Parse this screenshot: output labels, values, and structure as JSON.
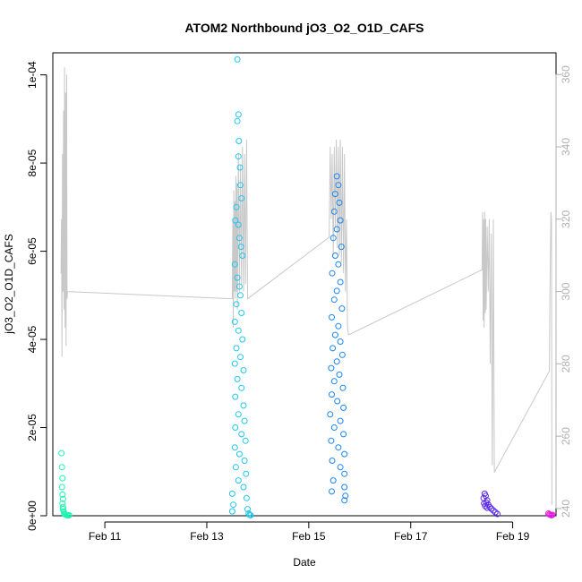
{
  "chart_data": {
    "type": "scatter",
    "title": "ATOM2 Northbound jO3_O2_O1D_CAFS",
    "xlabel": "Date",
    "ylabel": "jO3_O2_O1D_CAFS",
    "x_unit": "days in February",
    "xlim": [
      9.98,
      19.85
    ],
    "ylim": [
      0,
      0.000105
    ],
    "x_ticks": [
      {
        "value": 11,
        "label": "Feb 11"
      },
      {
        "value": 13,
        "label": "Feb 13"
      },
      {
        "value": 15,
        "label": "Feb 15"
      },
      {
        "value": 17,
        "label": "Feb 17"
      },
      {
        "value": 19,
        "label": "Feb 19"
      }
    ],
    "y_ticks": [
      {
        "value": 0,
        "label": "0e+00"
      },
      {
        "value": 2e-05,
        "label": "2e-05"
      },
      {
        "value": 4e-05,
        "label": "4e-05"
      },
      {
        "value": 6e-05,
        "label": "6e-05"
      },
      {
        "value": 8e-05,
        "label": "8e-05"
      },
      {
        "value": 0.0001,
        "label": "1e-04"
      }
    ],
    "y2_ticks": [
      {
        "value": 240,
        "label": "240"
      },
      {
        "value": 260,
        "label": "260"
      },
      {
        "value": 280,
        "label": "280"
      },
      {
        "value": 300,
        "label": "300"
      },
      {
        "value": 320,
        "label": "320"
      },
      {
        "value": 340,
        "label": "340"
      },
      {
        "value": 360,
        "label": "360"
      }
    ],
    "y2lim": [
      238,
      366
    ],
    "grid": false,
    "secondary_line_color": "#c8c8c8",
    "series": [
      {
        "color": "#1ff5b2",
        "points": [
          [
            10.15,
            1.42e-05
          ],
          [
            10.16,
            1.1e-05
          ],
          [
            10.17,
            8.5e-06
          ],
          [
            10.16,
            6.5e-06
          ],
          [
            10.17,
            4.8e-06
          ],
          [
            10.18,
            3.8e-06
          ],
          [
            10.17,
            2.8e-06
          ],
          [
            10.18,
            2e-06
          ],
          [
            10.18,
            1.5e-06
          ],
          [
            10.19,
            1e-06
          ],
          [
            10.2,
            7e-07
          ],
          [
            10.21,
            4e-07
          ],
          [
            10.22,
            3e-07
          ],
          [
            10.24,
            2e-07
          ],
          [
            10.26,
            1e-07
          ],
          [
            10.28,
            1e-07
          ],
          [
            10.3,
            1e-07
          ]
        ]
      },
      {
        "color": "#1ec8f0",
        "points": [
          [
            13.6,
            0.0001035
          ],
          [
            13.62,
            9.1e-05
          ],
          [
            13.6,
            8.95e-05
          ],
          [
            13.63,
            8.5e-05
          ],
          [
            13.62,
            8.15e-05
          ],
          [
            13.65,
            7.9e-05
          ],
          [
            13.66,
            7.5e-05
          ],
          [
            13.68,
            7.2e-05
          ],
          [
            13.58,
            7e-05
          ],
          [
            13.56,
            6.7e-05
          ],
          [
            13.62,
            6.6e-05
          ],
          [
            13.64,
            6.3e-05
          ],
          [
            13.67,
            6.1e-05
          ],
          [
            13.7,
            5.9e-05
          ],
          [
            13.55,
            5.7e-05
          ],
          [
            13.6,
            5.4e-05
          ],
          [
            13.64,
            5.2e-05
          ],
          [
            13.66,
            5e-05
          ],
          [
            13.58,
            4.8e-05
          ],
          [
            13.68,
            4.6e-05
          ],
          [
            13.55,
            4.4e-05
          ],
          [
            13.62,
            4.2e-05
          ],
          [
            13.7,
            4e-05
          ],
          [
            13.58,
            3.8e-05
          ],
          [
            13.66,
            3.6e-05
          ],
          [
            13.55,
            3.45e-05
          ],
          [
            13.72,
            3.3e-05
          ],
          [
            13.6,
            3.1e-05
          ],
          [
            13.68,
            2.9e-05
          ],
          [
            13.56,
            2.7e-05
          ],
          [
            13.72,
            2.5e-05
          ],
          [
            13.62,
            2.3e-05
          ],
          [
            13.74,
            2.15e-05
          ],
          [
            13.56,
            2e-05
          ],
          [
            13.68,
            1.85e-05
          ],
          [
            13.76,
            1.7e-05
          ],
          [
            13.55,
            1.55e-05
          ],
          [
            13.64,
            1.4e-05
          ],
          [
            13.74,
            1.25e-05
          ],
          [
            13.57,
            1.1e-05
          ],
          [
            13.77,
            9.5e-06
          ],
          [
            13.62,
            8e-06
          ],
          [
            13.72,
            6.5e-06
          ],
          [
            13.5,
            5e-06
          ],
          [
            13.78,
            4e-06
          ],
          [
            13.52,
            2.5e-06
          ],
          [
            13.8,
            1.5e-06
          ],
          [
            13.5,
            1e-06
          ],
          [
            13.82,
            5e-07
          ],
          [
            13.84,
            2e-07
          ],
          [
            13.86,
            1e-07
          ]
        ]
      },
      {
        "color": "#1a86f0",
        "points": [
          [
            15.55,
            7.7e-05
          ],
          [
            15.58,
            7.5e-05
          ],
          [
            15.52,
            7.3e-05
          ],
          [
            15.6,
            7.1e-05
          ],
          [
            15.5,
            6.9e-05
          ],
          [
            15.62,
            6.7e-05
          ],
          [
            15.55,
            6.5e-05
          ],
          [
            15.48,
            6.3e-05
          ],
          [
            15.64,
            6.1e-05
          ],
          [
            15.52,
            5.9e-05
          ],
          [
            15.58,
            5.7e-05
          ],
          [
            15.46,
            5.5e-05
          ],
          [
            15.62,
            5.3e-05
          ],
          [
            15.55,
            5.1e-05
          ],
          [
            15.5,
            4.9e-05
          ],
          [
            15.65,
            4.7e-05
          ],
          [
            15.45,
            4.5e-05
          ],
          [
            15.58,
            4.3e-05
          ],
          [
            15.52,
            4.1e-05
          ],
          [
            15.62,
            3.95e-05
          ],
          [
            15.47,
            3.8e-05
          ],
          [
            15.66,
            3.65e-05
          ],
          [
            15.55,
            3.5e-05
          ],
          [
            15.44,
            3.35e-05
          ],
          [
            15.6,
            3.2e-05
          ],
          [
            15.5,
            3.05e-05
          ],
          [
            15.67,
            2.9e-05
          ],
          [
            15.45,
            2.75e-05
          ],
          [
            15.56,
            2.6e-05
          ],
          [
            15.68,
            2.45e-05
          ],
          [
            15.42,
            2.3e-05
          ],
          [
            15.62,
            2.15e-05
          ],
          [
            15.5,
            2e-05
          ],
          [
            15.68,
            1.85e-05
          ],
          [
            15.44,
            1.7e-05
          ],
          [
            15.58,
            1.55e-05
          ],
          [
            15.7,
            1.4e-05
          ],
          [
            15.46,
            1.25e-05
          ],
          [
            15.62,
            1.1e-05
          ],
          [
            15.7,
            9.5e-06
          ],
          [
            15.48,
            8e-06
          ],
          [
            15.7,
            6.5e-06
          ],
          [
            15.45,
            5.5e-06
          ],
          [
            15.72,
            4.5e-06
          ],
          [
            15.7,
            3.5e-06
          ]
        ]
      },
      {
        "color": "#5a2ae6",
        "points": [
          [
            18.45,
            5e-06
          ],
          [
            18.47,
            4.5e-06
          ],
          [
            18.43,
            4e-06
          ],
          [
            18.5,
            3.5e-06
          ],
          [
            18.48,
            3e-06
          ],
          [
            18.44,
            2.8e-06
          ],
          [
            18.52,
            2.5e-06
          ],
          [
            18.46,
            2.2e-06
          ],
          [
            18.55,
            2e-06
          ],
          [
            18.5,
            1.8e-06
          ],
          [
            18.58,
            1.6e-06
          ],
          [
            18.62,
            1.2e-06
          ],
          [
            18.66,
            8e-07
          ],
          [
            18.7,
            4e-07
          ]
        ]
      },
      {
        "color": "#e619e6",
        "points": [
          [
            19.7,
            5e-07
          ],
          [
            19.72,
            3e-07
          ],
          [
            19.74,
            2e-07
          ],
          [
            19.76,
            1e-07
          ],
          [
            19.78,
            2e-07
          ]
        ]
      }
    ],
    "secondary_line": [
      [
        10.14,
        305
      ],
      [
        10.15,
        320
      ],
      [
        10.16,
        282
      ],
      [
        10.17,
        338
      ],
      [
        10.18,
        300
      ],
      [
        10.19,
        350
      ],
      [
        10.2,
        295
      ],
      [
        10.21,
        362
      ],
      [
        10.22,
        290
      ],
      [
        10.23,
        355
      ],
      [
        10.24,
        285
      ],
      [
        10.25,
        360
      ],
      [
        10.26,
        298
      ],
      [
        10.27,
        300
      ],
      [
        13.5,
        298
      ],
      [
        13.51,
        320
      ],
      [
        13.52,
        290
      ],
      [
        13.53,
        328
      ],
      [
        13.54,
        300
      ],
      [
        13.55,
        325
      ],
      [
        13.56,
        298
      ],
      [
        13.57,
        332
      ],
      [
        13.58,
        300
      ],
      [
        13.59,
        330
      ],
      [
        13.6,
        295
      ],
      [
        13.62,
        338
      ],
      [
        13.64,
        300
      ],
      [
        13.66,
        335
      ],
      [
        13.68,
        302
      ],
      [
        13.7,
        340
      ],
      [
        13.72,
        300
      ],
      [
        13.74,
        338
      ],
      [
        13.76,
        302
      ],
      [
        13.78,
        342
      ],
      [
        13.8,
        298
      ],
      [
        15.4,
        315
      ],
      [
        15.42,
        340
      ],
      [
        15.44,
        320
      ],
      [
        15.46,
        338
      ],
      [
        15.48,
        310
      ],
      [
        15.5,
        340
      ],
      [
        15.52,
        318
      ],
      [
        15.54,
        342
      ],
      [
        15.56,
        312
      ],
      [
        15.58,
        340
      ],
      [
        15.6,
        310
      ],
      [
        15.62,
        342
      ],
      [
        15.64,
        308
      ],
      [
        15.66,
        340
      ],
      [
        15.68,
        305
      ],
      [
        15.7,
        338
      ],
      [
        15.72,
        300
      ],
      [
        15.74,
        320
      ],
      [
        15.76,
        290
      ],
      [
        15.78,
        288
      ],
      [
        18.4,
        306
      ],
      [
        18.41,
        322
      ],
      [
        18.42,
        292
      ],
      [
        18.43,
        320
      ],
      [
        18.44,
        290
      ],
      [
        18.45,
        322
      ],
      [
        18.46,
        294
      ],
      [
        18.47,
        320
      ],
      [
        18.48,
        295
      ],
      [
        18.5,
        318
      ],
      [
        18.52,
        300
      ],
      [
        18.54,
        320
      ],
      [
        18.56,
        280
      ],
      [
        18.58,
        316
      ],
      [
        18.6,
        252
      ],
      [
        18.62,
        320
      ],
      [
        18.64,
        250
      ],
      [
        19.72,
        278
      ],
      [
        19.73,
        300
      ],
      [
        19.74,
        310
      ],
      [
        19.75,
        322
      ],
      [
        19.76,
        320
      ],
      [
        19.77,
        241
      ]
    ]
  }
}
